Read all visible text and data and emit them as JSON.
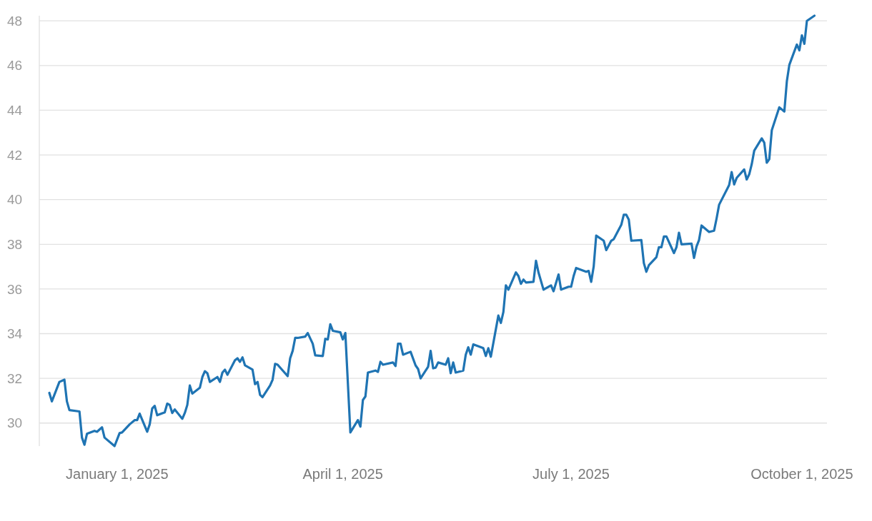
{
  "chart_data": {
    "type": "line",
    "x": [
      "2024-12-05",
      "2024-12-06",
      "2024-12-09",
      "2024-12-11",
      "2024-12-12",
      "2024-12-13",
      "2024-12-17",
      "2024-12-18",
      "2024-12-19",
      "2024-12-20",
      "2024-12-23",
      "2024-12-24",
      "2024-12-26",
      "2024-12-27",
      "2024-12-31",
      "2025-01-02",
      "2025-01-03",
      "2025-01-06",
      "2025-01-08",
      "2025-01-09",
      "2025-01-10",
      "2025-01-13",
      "2025-01-14",
      "2025-01-15",
      "2025-01-16",
      "2025-01-17",
      "2025-01-20",
      "2025-01-21",
      "2025-01-22",
      "2025-01-23",
      "2025-01-24",
      "2025-01-27",
      "2025-01-28",
      "2025-01-29",
      "2025-01-30",
      "2025-01-31",
      "2025-02-03",
      "2025-02-04",
      "2025-02-05",
      "2025-02-06",
      "2025-02-07",
      "2025-02-10",
      "2025-02-11",
      "2025-02-12",
      "2025-02-13",
      "2025-02-14",
      "2025-02-17",
      "2025-02-18",
      "2025-02-19",
      "2025-02-20",
      "2025-02-21",
      "2025-02-24",
      "2025-02-25",
      "2025-02-26",
      "2025-02-27",
      "2025-02-28",
      "2025-03-03",
      "2025-03-04",
      "2025-03-05",
      "2025-03-06",
      "2025-03-10",
      "2025-03-11",
      "2025-03-12",
      "2025-03-13",
      "2025-03-14",
      "2025-03-17",
      "2025-03-18",
      "2025-03-20",
      "2025-03-21",
      "2025-03-24",
      "2025-03-25",
      "2025-03-26",
      "2025-03-27",
      "2025-03-28",
      "2025-03-31",
      "2025-04-01",
      "2025-04-02",
      "2025-04-04",
      "2025-04-07",
      "2025-04-08",
      "2025-04-09",
      "2025-04-10",
      "2025-04-11",
      "2025-04-14",
      "2025-04-15",
      "2025-04-16",
      "2025-04-17",
      "2025-04-21",
      "2025-04-22",
      "2025-04-23",
      "2025-04-24",
      "2025-04-25",
      "2025-04-28",
      "2025-04-30",
      "2025-05-01",
      "2025-05-02",
      "2025-05-05",
      "2025-05-06",
      "2025-05-07",
      "2025-05-08",
      "2025-05-09",
      "2025-05-12",
      "2025-05-13",
      "2025-05-14",
      "2025-05-15",
      "2025-05-16",
      "2025-05-19",
      "2025-05-20",
      "2025-05-21",
      "2025-05-22",
      "2025-05-23",
      "2025-05-27",
      "2025-05-28",
      "2025-05-29",
      "2025-05-30",
      "2025-06-02",
      "2025-06-03",
      "2025-06-04",
      "2025-06-05",
      "2025-06-06",
      "2025-06-09",
      "2025-06-10",
      "2025-06-11",
      "2025-06-12",
      "2025-06-13",
      "2025-06-16",
      "2025-06-17",
      "2025-06-18",
      "2025-06-20",
      "2025-06-23",
      "2025-06-24",
      "2025-06-26",
      "2025-06-27",
      "2025-06-30",
      "2025-07-01",
      "2025-07-02",
      "2025-07-03",
      "2025-07-07",
      "2025-07-08",
      "2025-07-09",
      "2025-07-10",
      "2025-07-11",
      "2025-07-14",
      "2025-07-15",
      "2025-07-17",
      "2025-07-18",
      "2025-07-21",
      "2025-07-22",
      "2025-07-23",
      "2025-07-24",
      "2025-07-25",
      "2025-07-29",
      "2025-07-30",
      "2025-07-31",
      "2025-08-01",
      "2025-08-04",
      "2025-08-05",
      "2025-08-06",
      "2025-08-07",
      "2025-08-08",
      "2025-08-11",
      "2025-08-12",
      "2025-08-13",
      "2025-08-14",
      "2025-08-18",
      "2025-08-19",
      "2025-08-20",
      "2025-08-21",
      "2025-08-22",
      "2025-08-25",
      "2025-08-27",
      "2025-08-28",
      "2025-08-29",
      "2025-09-02",
      "2025-09-03",
      "2025-09-04",
      "2025-09-05",
      "2025-09-08",
      "2025-09-09",
      "2025-09-10",
      "2025-09-11",
      "2025-09-12",
      "2025-09-15",
      "2025-09-16",
      "2025-09-17",
      "2025-09-18",
      "2025-09-19",
      "2025-09-22",
      "2025-09-24",
      "2025-09-25",
      "2025-09-26",
      "2025-09-29",
      "2025-09-30",
      "2025-10-01",
      "2025-10-02",
      "2025-10-03",
      "2025-10-06"
    ],
    "series": [
      {
        "color": "#1f74b3",
        "values": [
          31.35,
          30.97,
          31.84,
          31.94,
          30.97,
          30.58,
          30.52,
          29.35,
          29.03,
          29.52,
          29.65,
          29.61,
          29.81,
          29.35,
          28.97,
          29.55,
          29.58,
          29.94,
          30.13,
          30.13,
          30.42,
          29.61,
          29.94,
          30.65,
          30.77,
          30.35,
          30.48,
          30.87,
          30.81,
          30.45,
          30.61,
          30.19,
          30.45,
          30.81,
          31.68,
          31.32,
          31.58,
          32.06,
          32.32,
          32.23,
          31.84,
          32.06,
          31.84,
          32.26,
          32.39,
          32.16,
          32.81,
          32.9,
          32.74,
          32.94,
          32.58,
          32.39,
          31.74,
          31.84,
          31.26,
          31.16,
          31.68,
          31.94,
          32.65,
          32.61,
          32.1,
          32.9,
          33.23,
          33.81,
          33.81,
          33.87,
          34.03,
          33.55,
          33.03,
          33.0,
          33.77,
          33.74,
          34.42,
          34.13,
          34.06,
          33.74,
          34.03,
          29.58,
          30.13,
          29.84,
          31.03,
          31.19,
          32.26,
          32.35,
          32.29,
          32.74,
          32.61,
          32.71,
          32.55,
          33.55,
          33.55,
          33.06,
          33.19,
          32.58,
          32.42,
          32.0,
          32.52,
          33.23,
          32.45,
          32.48,
          32.71,
          32.61,
          32.9,
          32.23,
          32.71,
          32.26,
          32.35,
          33.06,
          33.39,
          33.06,
          33.52,
          33.35,
          33.0,
          33.35,
          32.97,
          34.81,
          34.48,
          34.97,
          36.16,
          35.97,
          36.74,
          36.58,
          36.23,
          36.42,
          36.29,
          36.32,
          37.26,
          36.74,
          35.97,
          36.16,
          35.9,
          36.65,
          35.97,
          36.1,
          36.1,
          36.58,
          36.94,
          36.77,
          36.81,
          36.32,
          37.0,
          38.39,
          38.16,
          37.74,
          38.16,
          38.23,
          38.87,
          39.32,
          39.32,
          39.1,
          38.16,
          38.19,
          37.16,
          36.77,
          37.06,
          37.42,
          37.87,
          37.87,
          38.35,
          38.35,
          37.61,
          37.87,
          38.52,
          38.0,
          38.03,
          37.39,
          37.9,
          38.19,
          38.84,
          38.55,
          38.61,
          39.16,
          39.77,
          40.65,
          41.23,
          40.68,
          40.97,
          41.35,
          40.9,
          41.13,
          41.58,
          42.19,
          42.74,
          42.55,
          41.65,
          41.81,
          43.1,
          44.13,
          43.94,
          45.29,
          46.03,
          46.94,
          46.68,
          47.35,
          46.97,
          48.0,
          48.23
        ]
      }
    ],
    "xlim": [
      "2024-12-01",
      "2025-10-11"
    ],
    "xticks": [
      {
        "value": "2025-01-01",
        "label": "January 1, 2025"
      },
      {
        "value": "2025-04-01",
        "label": "April 1, 2025"
      },
      {
        "value": "2025-07-01",
        "label": "July 1, 2025"
      },
      {
        "value": "2025-10-01",
        "label": "October 1, 2025"
      }
    ],
    "ylim": [
      28.97,
      48.23
    ],
    "yticks": [
      30,
      32,
      34,
      36,
      38,
      40,
      42,
      44,
      46,
      48
    ],
    "grid": "y"
  }
}
